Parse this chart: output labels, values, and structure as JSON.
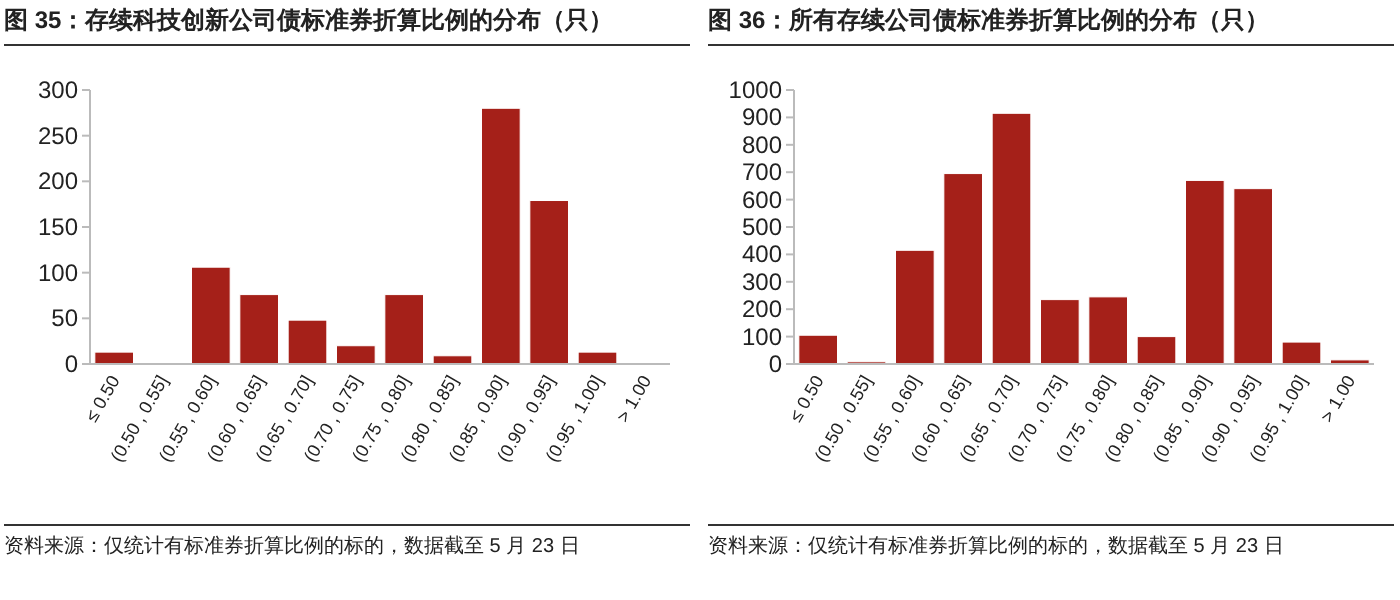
{
  "chart_data": [
    {
      "type": "bar",
      "title": "图 35：存续科技创新公司债标准券折算比例的分布（只）",
      "categories": [
        "≤ 0.50",
        "(0.50 , 0.55]",
        "(0.55 , 0.60]",
        "(0.60 , 0.65]",
        "(0.65 , 0.70]",
        "(0.70 , 0.75]",
        "(0.75 , 0.80]",
        "(0.80 , 0.85]",
        "(0.85 , 0.90]",
        "(0.90 , 0.95]",
        "(0.95 , 1.00]",
        "> 1.00"
      ],
      "series": [
        {
          "color": "#a52019",
          "values": [
            13,
            0,
            106,
            76,
            48,
            20,
            76,
            9,
            280,
            179,
            13,
            0
          ]
        }
      ],
      "ylim": [
        0,
        300
      ],
      "yticks": [
        0,
        50,
        100,
        150,
        200,
        250,
        300
      ],
      "annotations": [
        "资料来源：仅统计有标准券折算比例的标的，数据截至 5 月 23 日"
      ]
    },
    {
      "type": "bar",
      "title": "图 36：所有存续公司债标准券折算比例的分布（只）",
      "categories": [
        "≤ 0.50",
        "(0.50 , 0.55]",
        "(0.55 , 0.60]",
        "(0.60 , 0.65]",
        "(0.65 , 0.70]",
        "(0.70 , 0.75]",
        "(0.75 , 0.80]",
        "(0.80 , 0.85]",
        "(0.85 , 0.90]",
        "(0.90 , 0.95]",
        "(0.95 , 1.00]",
        "> 1.00"
      ],
      "series": [
        {
          "color": "#a52019",
          "values": [
            105,
            8,
            415,
            695,
            915,
            235,
            245,
            100,
            670,
            640,
            80,
            15
          ]
        }
      ],
      "ylim": [
        0,
        1000
      ],
      "yticks": [
        0,
        100,
        200,
        300,
        400,
        500,
        600,
        700,
        800,
        900,
        1000
      ],
      "annotations": [
        "资料来源：仅统计有标准券折算比例的标的，数据截至 5 月 23 日"
      ]
    }
  ]
}
